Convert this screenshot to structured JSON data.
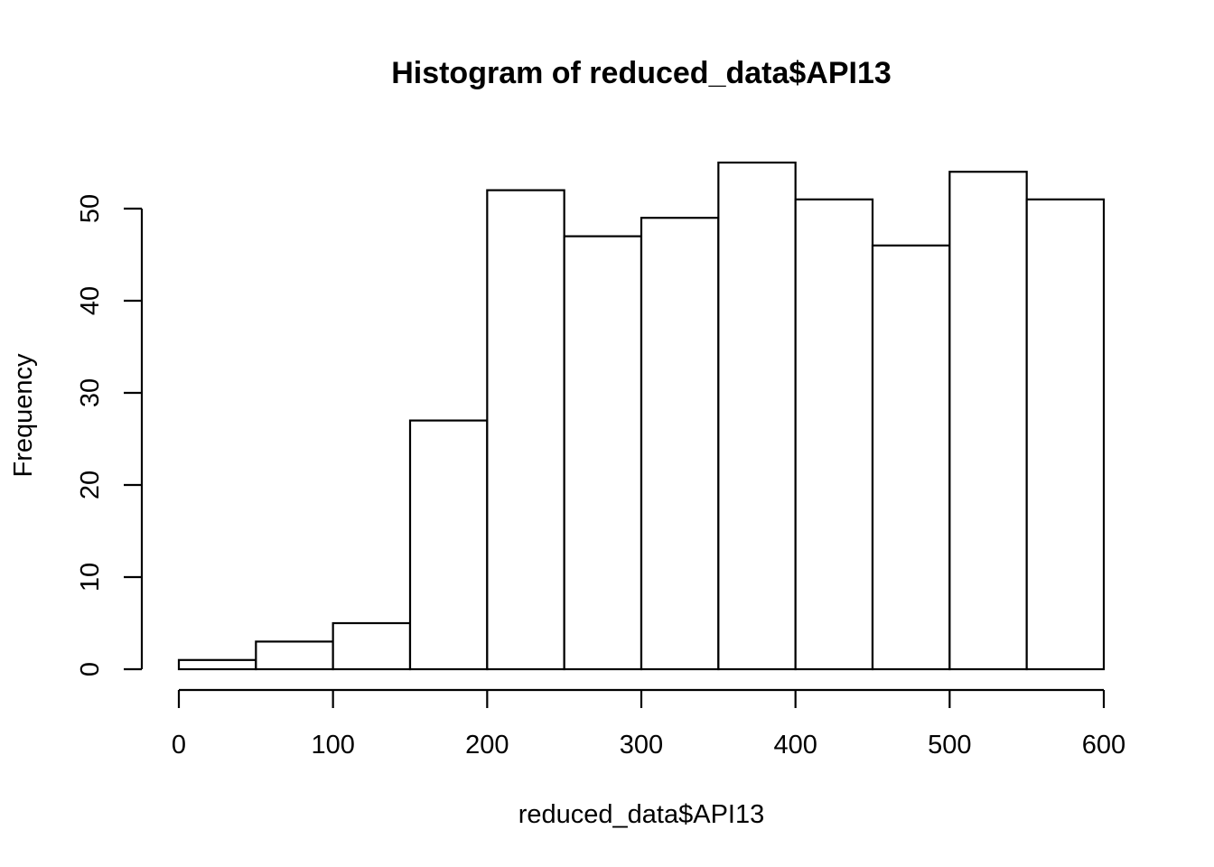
{
  "chart_data": {
    "type": "bar",
    "title": "Histogram of reduced_data$API13",
    "xlabel": "reduced_data$API13",
    "ylabel": "Frequency",
    "bin_edges": [
      0,
      50,
      100,
      150,
      200,
      250,
      300,
      350,
      400,
      450,
      500,
      550,
      600
    ],
    "values": [
      1,
      3,
      5,
      27,
      52,
      47,
      49,
      55,
      51,
      46,
      54,
      51
    ],
    "xlim": [
      0,
      600
    ],
    "ylim": [
      0,
      55
    ],
    "x_ticks": [
      0,
      100,
      200,
      300,
      400,
      500,
      600
    ],
    "y_ticks": [
      0,
      10,
      20,
      30,
      40,
      50
    ],
    "grid": false,
    "legend": "none",
    "colors": {
      "bar_fill": "#ffffff",
      "bar_stroke": "#000000"
    }
  }
}
